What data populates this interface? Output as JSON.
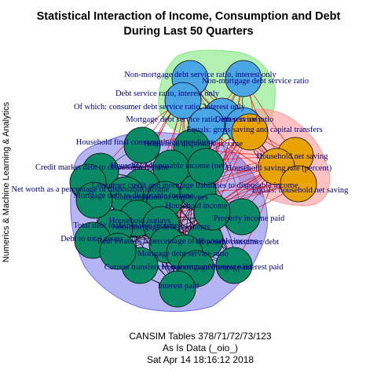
{
  "title_line1": "Statistical Interaction of Income, Consumption and Debt",
  "title_line2": "During Last 50 Quarters",
  "side_label": "Numerics & Machine Learning & Analytics",
  "caption_line1": "CANSIM Tables 378/71/72/73/123",
  "caption_line2": "As Is Data (_oio_)",
  "caption_line3": "Sat Apr 14 18:16:12 2018",
  "colors": {
    "group_blue_node": "#4ba6e6",
    "group_blue_hull": "#7fe87f",
    "group_orange_node": "#e8a300",
    "group_orange_hull": "#ff9a9a",
    "group_green_node": "#0a8a64",
    "group_green_hull": "#6b6bea",
    "edge_within": "#000000",
    "edge_between": "#e00000",
    "label": "#000080"
  },
  "groups": [
    {
      "name": "blue",
      "nodes": [
        {
          "label": "Non-mortgage debt service ratio, interest only"
        },
        {
          "label": "Non-mortgage debt service ratio"
        },
        {
          "label": "Debt service ratio, interest only"
        },
        {
          "label": "Of which: consumer debt service ratio, interest only"
        },
        {
          "label": "Mortgage debt service ratio, interest only"
        },
        {
          "label": "Debt service ratio"
        }
      ]
    },
    {
      "name": "orange",
      "nodes": [
        {
          "label": "Equals: gross saving and capital transfers"
        },
        {
          "label": "Household net saving"
        },
        {
          "label": "Household saving rate (percent)"
        },
        {
          "label": "Equals: household net saving"
        }
      ]
    },
    {
      "name": "green",
      "nodes": [
        {
          "label": "Household final consumption expenditure"
        },
        {
          "label": "Household disposable income"
        },
        {
          "label": "Credit market debt to disposable income"
        },
        {
          "label": "Household disposable income (net)"
        },
        {
          "label": "Net worth as a percentage of disposable income"
        },
        {
          "label": "Consumer credit and mortgage liabilities to disposable income"
        },
        {
          "label": "Mortgage debt to disposable income"
        },
        {
          "label": "Compensation of employees"
        },
        {
          "label": "Household income"
        },
        {
          "label": "Property income paid"
        },
        {
          "label": "Household outlays"
        },
        {
          "label": "Total debt to disposable income"
        },
        {
          "label": "Non-mortgage debt payments"
        },
        {
          "label": "Debt to total assets"
        },
        {
          "label": "Real estate as a percentage of disposable income"
        },
        {
          "label": "Of which: consumer debt"
        },
        {
          "label": "Mortgage debt service ratio"
        },
        {
          "label": "Current transfers to government"
        },
        {
          "label": "Non-mortgage interest paid"
        },
        {
          "label": "Mortgage interest paid"
        },
        {
          "label": "Interest paid"
        },
        {
          "label": "Saving"
        },
        {
          "label": "Income"
        },
        {
          "label": "Outlays"
        },
        {
          "label": "Payments"
        }
      ]
    }
  ]
}
